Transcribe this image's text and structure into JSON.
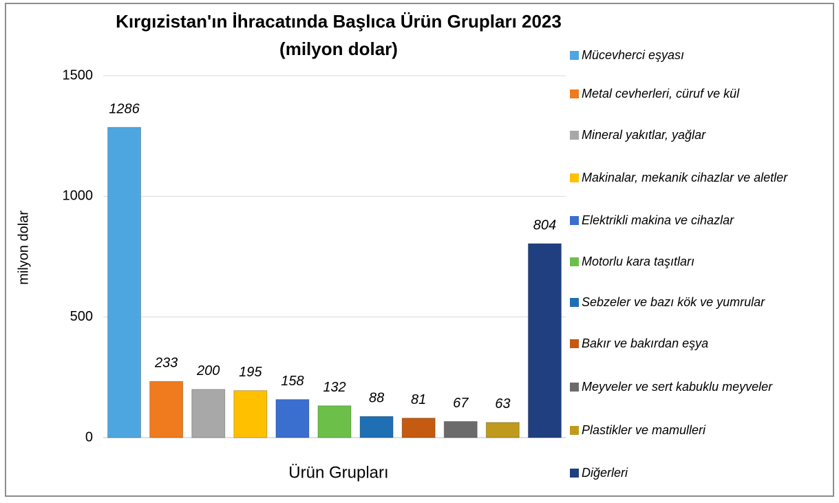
{
  "chart_data": {
    "type": "bar",
    "title": "Kırgızistan'ın İhracatında Başlıca Ürün Grupları 2023",
    "subtitle": "(milyon dolar)",
    "ylabel": "milyon dolar",
    "xlabel": "Ürün Grupları",
    "categories": [
      "Mücevherci eşyası",
      "Metal cevherleri, cüruf ve kül",
      "Mineral yakıtlar, yağlar",
      "Makinalar, mekanik cihazlar ve aletler",
      "Elektrikli makina ve cihazlar",
      "Motorlu kara taşıtları",
      "Sebzeler ve bazı kök ve yumrular",
      "Bakır ve bakırdan eşya",
      "Meyveler ve sert kabuklu meyveler",
      "Plastikler ve mamulleri",
      "Diğerleri"
    ],
    "values": [
      1286,
      233,
      200,
      195,
      158,
      132,
      88,
      81,
      67,
      63,
      804
    ],
    "colors": [
      "#4ea6e0",
      "#f07a1e",
      "#a8a8a8",
      "#ffc000",
      "#3a6fd0",
      "#6cc04a",
      "#1f6fb5",
      "#c55a11",
      "#6b6b6b",
      "#c09a1c",
      "#203f80"
    ],
    "ylim": [
      0,
      1500
    ],
    "yticks": [
      0,
      500,
      1000,
      1500
    ],
    "grid": true,
    "legend": "right"
  }
}
